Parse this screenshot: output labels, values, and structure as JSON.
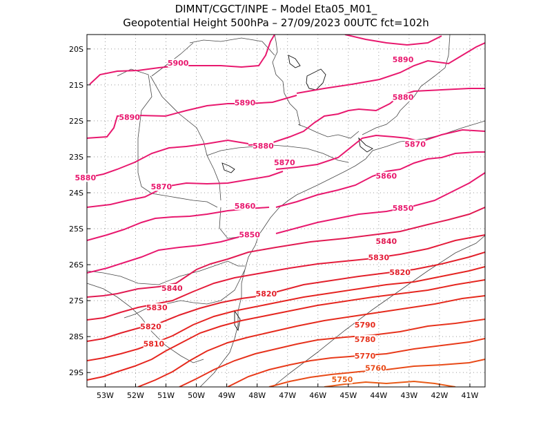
{
  "title": {
    "line1": "DIMNT/CGCT/INPE –  Model Eta05_M01_",
    "line2": "Geopotential Height 500hPa –  27/09/2023 00UTC fct=102h"
  },
  "map": {
    "lon_range": [
      -53.6,
      -40.5
    ],
    "lat_range": [
      -29.4,
      -19.6
    ],
    "lat_labels": [
      "20S",
      "21S",
      "22S",
      "23S",
      "24S",
      "25S",
      "26S",
      "27S",
      "28S",
      "29S"
    ],
    "lon_labels": [
      "53W",
      "52W",
      "51W",
      "50W",
      "49W",
      "48W",
      "47W",
      "46W",
      "45W",
      "44W",
      "43W",
      "42W",
      "41W"
    ]
  },
  "contour_labels": [
    {
      "text": "5900",
      "color": "#e8186e",
      "lon": -50.6,
      "lat": -20.43
    },
    {
      "text": "5890",
      "color": "#e8186e",
      "lon": -43.2,
      "lat": -20.33
    },
    {
      "text": "5890",
      "color": "#e8186e",
      "lon": -48.4,
      "lat": -21.53
    },
    {
      "text": "5890",
      "color": "#e8186e",
      "lon": -52.2,
      "lat": -21.93
    },
    {
      "text": "5880",
      "color": "#e8186e",
      "lon": -43.2,
      "lat": -21.38
    },
    {
      "text": "5880",
      "color": "#e8186e",
      "lon": -47.8,
      "lat": -22.73
    },
    {
      "text": "5880",
      "color": "#e8186e",
      "lon": -53.65,
      "lat": -23.62
    },
    {
      "text": "5870",
      "color": "#e8186e",
      "lon": -42.8,
      "lat": -22.68
    },
    {
      "text": "5870",
      "color": "#e8186e",
      "lon": -47.1,
      "lat": -23.19
    },
    {
      "text": "5870",
      "color": "#e8186e",
      "lon": -51.15,
      "lat": -23.87
    },
    {
      "text": "5860",
      "color": "#e8186e",
      "lon": -43.75,
      "lat": -23.57
    },
    {
      "text": "5860",
      "color": "#e8186e",
      "lon": -48.4,
      "lat": -24.4
    },
    {
      "text": "5850",
      "color": "#e8186e",
      "lon": -43.2,
      "lat": -24.46
    },
    {
      "text": "5850",
      "color": "#e8186e",
      "lon": -48.25,
      "lat": -25.2
    },
    {
      "text": "5840",
      "color": "#e11a52",
      "lon": -43.75,
      "lat": -25.38
    },
    {
      "text": "5840",
      "color": "#e11a52",
      "lon": -50.8,
      "lat": -26.69
    },
    {
      "text": "5830",
      "color": "#e41c3a",
      "lon": -44.0,
      "lat": -25.84
    },
    {
      "text": "5830",
      "color": "#e41c3a",
      "lon": -51.3,
      "lat": -27.23
    },
    {
      "text": "5820",
      "color": "#e2202a",
      "lon": -43.3,
      "lat": -26.25
    },
    {
      "text": "5820",
      "color": "#e2202a",
      "lon": -47.7,
      "lat": -26.84
    },
    {
      "text": "5820",
      "color": "#e2202a",
      "lon": -51.5,
      "lat": -27.76
    },
    {
      "text": "5810",
      "color": "#e52421",
      "lon": -51.4,
      "lat": -28.24
    },
    {
      "text": "5790",
      "color": "#e52a1c",
      "lon": -44.45,
      "lat": -27.71
    },
    {
      "text": "5780",
      "color": "#e6321c",
      "lon": -44.45,
      "lat": -28.11
    },
    {
      "text": "5770",
      "color": "#e83a1a",
      "lon": -44.45,
      "lat": -28.57
    },
    {
      "text": "5760",
      "color": "#e84a18",
      "lon": -44.1,
      "lat": -28.91
    },
    {
      "text": "5750",
      "color": "#e85a17",
      "lon": -45.2,
      "lat": -29.23
    }
  ],
  "colors": {
    "magenta": "#e8186e",
    "mid": "#e11a52",
    "red": "#e2202a",
    "orange": "#e85a17",
    "grid": "#999999",
    "coast": "#444444"
  }
}
